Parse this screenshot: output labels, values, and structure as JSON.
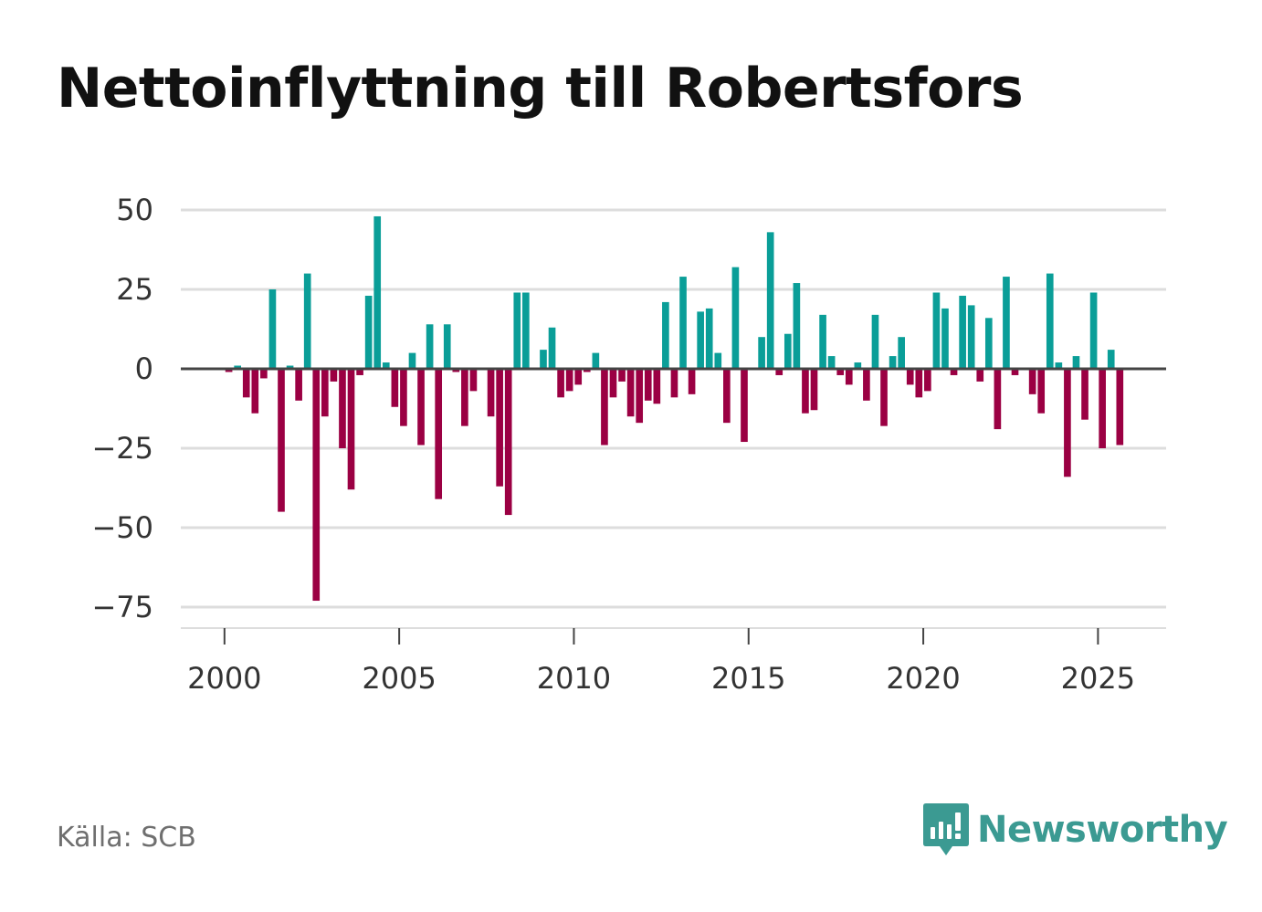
{
  "title": "Nettoinflyttning till Robertsfors",
  "source": "Källa: SCB",
  "brand": {
    "name": "Newsworthy",
    "icon": "newsworthy-logo-icon",
    "color": "#3b9a92"
  },
  "colors": {
    "positive": "#0a9e98",
    "negative": "#9b0043",
    "grid": "#dddddd",
    "zero_line": "#444444",
    "axis_text": "#333333"
  },
  "chart_data": {
    "type": "bar",
    "title": "Nettoinflyttning till Robertsfors",
    "xlabel": "",
    "ylabel": "",
    "ylim": [
      -82,
      56
    ],
    "yticks": [
      50,
      25,
      0,
      -25,
      -50,
      -75
    ],
    "ytick_labels": [
      "50",
      "25",
      "0",
      "−25",
      "−50",
      "−75"
    ],
    "xticks": [
      2000,
      2005,
      2010,
      2015,
      2020,
      2025
    ],
    "xtick_labels": [
      "2000",
      "2005",
      "2010",
      "2015",
      "2020",
      "2025"
    ],
    "xlim": [
      1998.75,
      2026.95
    ],
    "frequency": "quarterly",
    "start": 2000.125,
    "step": 0.25,
    "grid": true,
    "values": [
      -1,
      1,
      -9,
      -14,
      -3,
      25,
      -45,
      1,
      -10,
      30,
      -73,
      -15,
      -4,
      -25,
      -38,
      -2,
      23,
      48,
      2,
      -12,
      -18,
      5,
      -24,
      14,
      -41,
      14,
      -1,
      -18,
      -7,
      0,
      -15,
      -37,
      -46,
      24,
      24,
      0,
      6,
      13,
      -9,
      -7,
      -5,
      -1,
      5,
      -24,
      -9,
      -4,
      -15,
      -17,
      -10,
      -11,
      21,
      -9,
      29,
      -8,
      18,
      19,
      5,
      -17,
      32,
      -23,
      0,
      10,
      43,
      -2,
      11,
      27,
      -14,
      -13,
      17,
      4,
      -2,
      -5,
      2,
      -10,
      17,
      -18,
      4,
      10,
      -5,
      -9,
      -7,
      24,
      19,
      -2,
      23,
      20,
      -4,
      16,
      -19,
      29,
      -2,
      0,
      -8,
      -14,
      30,
      2,
      -34,
      4,
      -16,
      24,
      -25,
      6,
      -24
    ]
  }
}
